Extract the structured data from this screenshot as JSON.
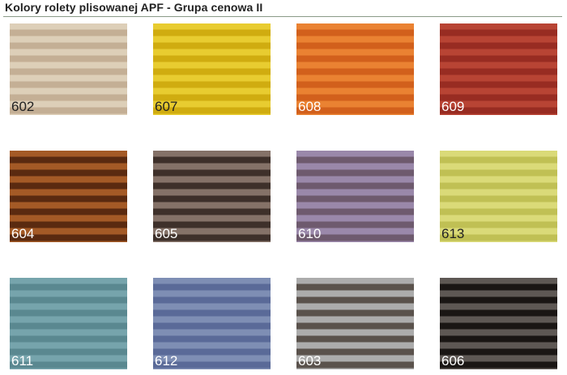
{
  "title": "Kolory rolety plisowanej APF - Grupa cenowa II",
  "swatches": [
    {
      "code": "602",
      "light": "#ddcfb8",
      "dark": "#c4af95",
      "text": "#222222"
    },
    {
      "code": "607",
      "light": "#e8cc30",
      "dark": "#d0ac10",
      "text": "#222222"
    },
    {
      "code": "608",
      "light": "#ea8232",
      "dark": "#d2601c",
      "text": "#ffffff"
    },
    {
      "code": "609",
      "light": "#b84434",
      "dark": "#982c22",
      "text": "#ffffff"
    },
    {
      "code": "604",
      "light": "#a45a26",
      "dark": "#5a2a10",
      "text": "#ffffff"
    },
    {
      "code": "605",
      "light": "#857268",
      "dark": "#3e302a",
      "text": "#ffffff"
    },
    {
      "code": "610",
      "light": "#9a88aa",
      "dark": "#6e5a6e",
      "text": "#ffffff"
    },
    {
      "code": "613",
      "light": "#dada78",
      "dark": "#c0c054",
      "text": "#222222"
    },
    {
      "code": "611",
      "light": "#76a4ac",
      "dark": "#5a8890",
      "text": "#ffffff"
    },
    {
      "code": "612",
      "light": "#7e8eb4",
      "dark": "#5a6a98",
      "text": "#ffffff"
    },
    {
      "code": "603",
      "light": "#acacac",
      "dark": "#5a524c",
      "text": "#ffffff"
    },
    {
      "code": "606",
      "light": "#5e5854",
      "dark": "#1a1614",
      "text": "#ffffff"
    }
  ]
}
